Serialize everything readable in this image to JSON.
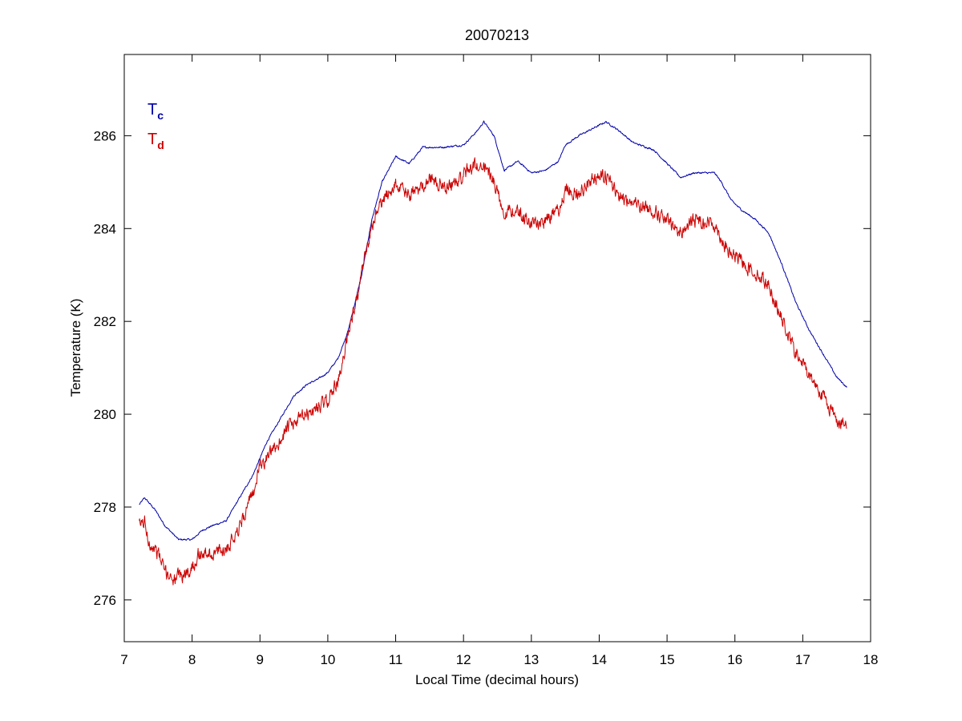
{
  "chart_data": {
    "type": "line",
    "title": "20070213",
    "xlabel": "Local Time (decimal hours)",
    "ylabel": "Temperature (K)",
    "xlim": [
      7,
      18
    ],
    "ylim": [
      275.1,
      287.75
    ],
    "xticks": [
      7,
      8,
      9,
      10,
      11,
      12,
      13,
      14,
      15,
      16,
      17,
      18
    ],
    "yticks": [
      276,
      278,
      280,
      282,
      284,
      286
    ],
    "grid": false,
    "legend": {
      "placement": "top-left",
      "entries": [
        {
          "main": "T",
          "sub": "c",
          "color": "#0000aa"
        },
        {
          "main": "T",
          "sub": "d",
          "color": "#cc0000"
        }
      ]
    },
    "series": [
      {
        "color": "#0000aa",
        "noise": 0.015,
        "points": [
          [
            7.22,
            278.05
          ],
          [
            7.3,
            278.2
          ],
          [
            7.45,
            277.95
          ],
          [
            7.6,
            277.6
          ],
          [
            7.8,
            277.3
          ],
          [
            8.0,
            277.3
          ],
          [
            8.15,
            277.5
          ],
          [
            8.3,
            277.6
          ],
          [
            8.5,
            277.7
          ],
          [
            8.7,
            278.2
          ],
          [
            8.9,
            278.7
          ],
          [
            9.1,
            279.4
          ],
          [
            9.3,
            279.9
          ],
          [
            9.5,
            280.4
          ],
          [
            9.7,
            280.65
          ],
          [
            9.85,
            280.75
          ],
          [
            10.0,
            280.9
          ],
          [
            10.15,
            281.2
          ],
          [
            10.3,
            281.8
          ],
          [
            10.5,
            283.0
          ],
          [
            10.65,
            284.2
          ],
          [
            10.8,
            285.0
          ],
          [
            11.0,
            285.55
          ],
          [
            11.2,
            285.4
          ],
          [
            11.4,
            285.75
          ],
          [
            11.7,
            285.75
          ],
          [
            12.0,
            285.8
          ],
          [
            12.2,
            286.1
          ],
          [
            12.3,
            286.3
          ],
          [
            12.45,
            286.0
          ],
          [
            12.6,
            285.25
          ],
          [
            12.8,
            285.45
          ],
          [
            13.0,
            285.2
          ],
          [
            13.2,
            285.25
          ],
          [
            13.4,
            285.45
          ],
          [
            13.5,
            285.8
          ],
          [
            13.7,
            286.0
          ],
          [
            13.9,
            286.15
          ],
          [
            14.1,
            286.3
          ],
          [
            14.3,
            286.1
          ],
          [
            14.5,
            285.85
          ],
          [
            14.8,
            285.7
          ],
          [
            15.0,
            285.4
          ],
          [
            15.2,
            285.1
          ],
          [
            15.4,
            285.2
          ],
          [
            15.7,
            285.2
          ],
          [
            15.8,
            285.0
          ],
          [
            15.95,
            284.6
          ],
          [
            16.1,
            284.4
          ],
          [
            16.3,
            284.2
          ],
          [
            16.5,
            283.9
          ],
          [
            16.7,
            283.2
          ],
          [
            16.9,
            282.4
          ],
          [
            17.1,
            281.8
          ],
          [
            17.3,
            281.3
          ],
          [
            17.5,
            280.8
          ],
          [
            17.65,
            280.58
          ]
        ]
      },
      {
        "color": "#cc0000",
        "noise": 0.12,
        "points": [
          [
            7.22,
            277.6
          ],
          [
            7.3,
            277.7
          ],
          [
            7.35,
            277.3
          ],
          [
            7.5,
            277.0
          ],
          [
            7.6,
            276.6
          ],
          [
            7.75,
            276.45
          ],
          [
            7.9,
            276.55
          ],
          [
            8.0,
            276.7
          ],
          [
            8.1,
            277.0
          ],
          [
            8.3,
            277.0
          ],
          [
            8.5,
            277.1
          ],
          [
            8.7,
            277.6
          ],
          [
            8.9,
            278.3
          ],
          [
            9.0,
            278.9
          ],
          [
            9.2,
            279.2
          ],
          [
            9.4,
            279.7
          ],
          [
            9.6,
            279.9
          ],
          [
            9.8,
            280.1
          ],
          [
            10.0,
            280.3
          ],
          [
            10.2,
            280.9
          ],
          [
            10.3,
            281.8
          ],
          [
            10.45,
            282.6
          ],
          [
            10.55,
            283.4
          ],
          [
            10.7,
            284.3
          ],
          [
            10.85,
            284.7
          ],
          [
            11.0,
            284.95
          ],
          [
            11.2,
            284.7
          ],
          [
            11.35,
            284.85
          ],
          [
            11.5,
            285.1
          ],
          [
            11.7,
            284.9
          ],
          [
            11.9,
            285.0
          ],
          [
            12.1,
            285.3
          ],
          [
            12.3,
            285.4
          ],
          [
            12.45,
            285.0
          ],
          [
            12.6,
            284.35
          ],
          [
            12.8,
            284.4
          ],
          [
            13.0,
            284.1
          ],
          [
            13.2,
            284.15
          ],
          [
            13.4,
            284.4
          ],
          [
            13.5,
            284.8
          ],
          [
            13.7,
            284.75
          ],
          [
            13.9,
            285.1
          ],
          [
            14.1,
            285.1
          ],
          [
            14.3,
            284.7
          ],
          [
            14.5,
            284.55
          ],
          [
            14.8,
            284.4
          ],
          [
            15.0,
            284.15
          ],
          [
            15.2,
            283.9
          ],
          [
            15.4,
            284.2
          ],
          [
            15.7,
            284.1
          ],
          [
            15.8,
            283.8
          ],
          [
            15.9,
            283.5
          ],
          [
            16.1,
            283.3
          ],
          [
            16.3,
            283.05
          ],
          [
            16.5,
            282.8
          ],
          [
            16.7,
            282.0
          ],
          [
            16.9,
            281.3
          ],
          [
            17.1,
            280.85
          ],
          [
            17.3,
            280.4
          ],
          [
            17.5,
            279.9
          ],
          [
            17.65,
            279.7
          ]
        ]
      }
    ]
  }
}
